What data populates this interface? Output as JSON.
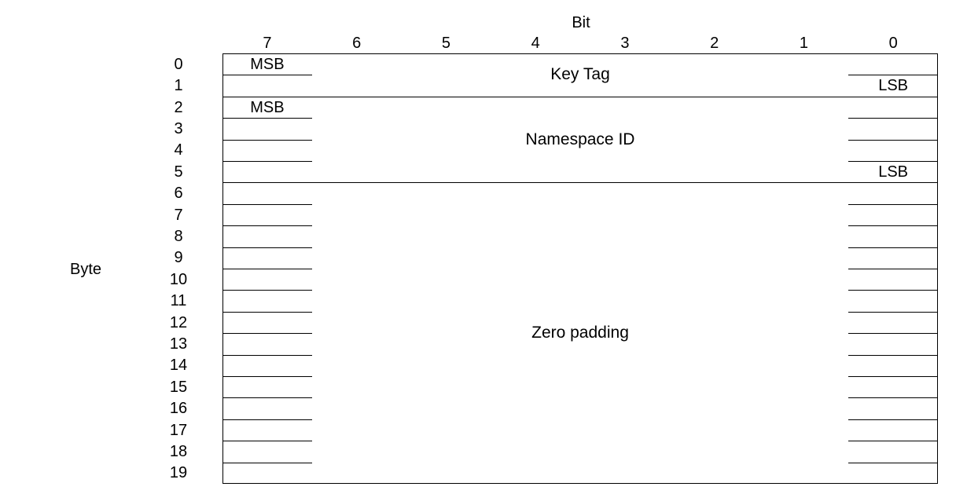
{
  "bit_axis_title": "Bit",
  "byte_axis_title": "Byte",
  "bits": [
    "7",
    "6",
    "5",
    "4",
    "3",
    "2",
    "1",
    "0"
  ],
  "bytes": [
    "0",
    "1",
    "2",
    "3",
    "4",
    "5",
    "6",
    "7",
    "8",
    "9",
    "10",
    "11",
    "12",
    "13",
    "14",
    "15",
    "16",
    "17",
    "18",
    "19"
  ],
  "fields": [
    {
      "name": "Key Tag",
      "start_byte": 0,
      "end_byte": 1,
      "msb": "MSB",
      "lsb": "LSB"
    },
    {
      "name": "Namespace ID",
      "start_byte": 2,
      "end_byte": 5,
      "msb": "MSB",
      "lsb": "LSB"
    },
    {
      "name": "Zero padding",
      "start_byte": 6,
      "end_byte": 19,
      "msb": "",
      "lsb": ""
    }
  ]
}
